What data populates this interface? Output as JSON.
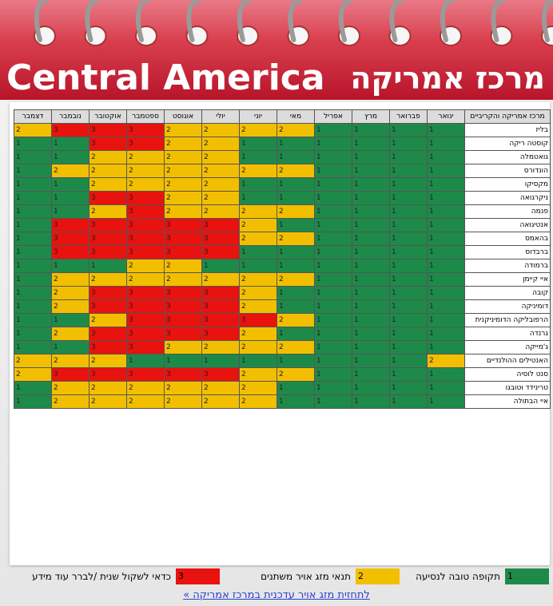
{
  "header": {
    "title_en": "Central America",
    "title_he": "מרכז אמריקה"
  },
  "table": {
    "columns": [
      "מרכז אמריקה והקריביים",
      "ינואר",
      "פברואר",
      "מרץ",
      "אפריל",
      "מאי",
      "יוני",
      "יולי",
      "אוגוסט",
      "ספטמבר",
      "אוקטובר",
      "נובמבר",
      "דצמבר"
    ],
    "rows": [
      [
        "בליז",
        1,
        1,
        1,
        1,
        2,
        2,
        2,
        2,
        3,
        3,
        3,
        2
      ],
      [
        "קוסטה ריקה",
        1,
        1,
        1,
        1,
        1,
        1,
        2,
        2,
        3,
        3,
        1,
        1
      ],
      [
        "גואטמלה",
        1,
        1,
        1,
        1,
        1,
        1,
        2,
        2,
        2,
        2,
        1,
        1
      ],
      [
        "הונדורס",
        1,
        1,
        1,
        1,
        2,
        2,
        2,
        2,
        2,
        2,
        2,
        1
      ],
      [
        "מקסיקו",
        1,
        1,
        1,
        1,
        1,
        1,
        2,
        2,
        2,
        2,
        1,
        1
      ],
      [
        "ניקרגואה",
        1,
        1,
        1,
        1,
        1,
        1,
        2,
        2,
        3,
        3,
        1,
        1
      ],
      [
        "פנמה",
        1,
        1,
        1,
        1,
        2,
        2,
        2,
        2,
        3,
        2,
        1,
        1
      ],
      [
        "אנטיגואה",
        1,
        1,
        1,
        1,
        1,
        2,
        3,
        3,
        3,
        3,
        3,
        1
      ],
      [
        "בהאמס",
        1,
        1,
        1,
        1,
        2,
        2,
        3,
        3,
        3,
        3,
        3,
        1
      ],
      [
        "ברבדוס",
        1,
        1,
        1,
        1,
        1,
        1,
        3,
        3,
        3,
        3,
        3,
        1
      ],
      [
        "ברמודה",
        1,
        1,
        1,
        1,
        1,
        1,
        1,
        2,
        2,
        1,
        1,
        1
      ],
      [
        "איי קיימן",
        1,
        1,
        1,
        1,
        2,
        2,
        2,
        2,
        2,
        2,
        2,
        1
      ],
      [
        "קובה",
        1,
        1,
        1,
        1,
        1,
        2,
        3,
        3,
        3,
        3,
        2,
        1
      ],
      [
        "דומיניקה",
        1,
        1,
        1,
        1,
        1,
        2,
        3,
        3,
        3,
        3,
        2,
        1
      ],
      [
        "הרפובליקה הדומיניקנית",
        1,
        1,
        1,
        1,
        2,
        3,
        3,
        3,
        3,
        2,
        1,
        1
      ],
      [
        "גרנדה",
        1,
        1,
        1,
        1,
        1,
        2,
        3,
        3,
        3,
        3,
        2,
        1
      ],
      [
        "ג'מייקה",
        1,
        1,
        1,
        1,
        2,
        2,
        2,
        2,
        3,
        3,
        1,
        1
      ],
      [
        "האנטילים ההולנדיים",
        2,
        1,
        1,
        1,
        1,
        1,
        1,
        1,
        1,
        2,
        2,
        2
      ],
      [
        "סנט לוסיה",
        1,
        1,
        1,
        1,
        2,
        2,
        3,
        3,
        3,
        3,
        3,
        2
      ],
      [
        "טרינידד וטובגו",
        1,
        1,
        1,
        1,
        1,
        2,
        2,
        2,
        2,
        2,
        2,
        1
      ],
      [
        "איי הבתולה",
        1,
        1,
        1,
        1,
        1,
        2,
        2,
        2,
        2,
        2,
        2,
        1
      ]
    ]
  },
  "legend": {
    "items": [
      {
        "value": 1,
        "label": "תקופה טובה לנסיעה",
        "color": "#1e8a4a"
      },
      {
        "value": 2,
        "label": "תנאי מזג אויר משתנים",
        "color": "#f2bf00"
      },
      {
        "value": 3,
        "label": "כדאי לשקול שנית /לברר עוד מידע",
        "color": "#e8120f"
      }
    ]
  },
  "link": "לתחזית מזג אויר עדכנית במרכז אמריקה »"
}
